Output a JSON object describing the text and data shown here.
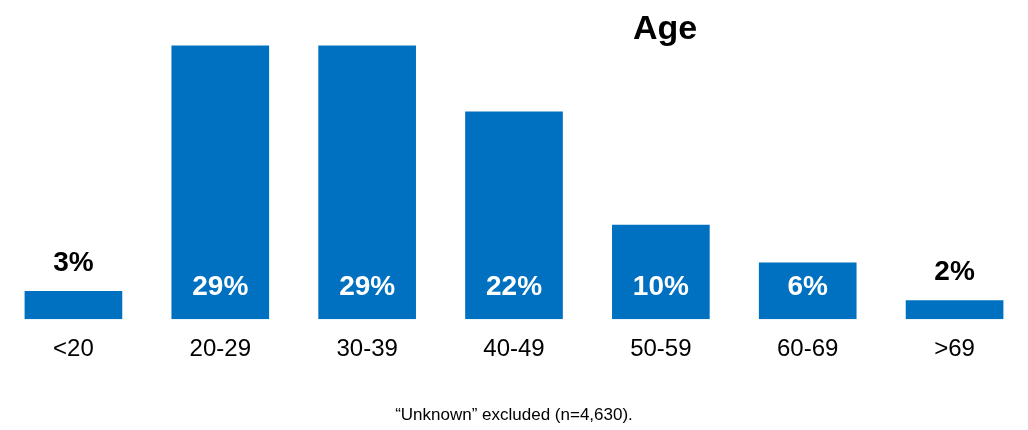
{
  "chart_data": {
    "type": "bar",
    "title": "Age",
    "categories": [
      "<20",
      "20-29",
      "30-39",
      "40-49",
      "50-59",
      "60-69",
      ">69"
    ],
    "values": [
      3,
      29,
      29,
      22,
      10,
      6,
      2
    ],
    "value_labels": [
      "3%",
      "29%",
      "29%",
      "22%",
      "10%",
      "6%",
      "2%"
    ],
    "color": "#0070c0",
    "annotations": [
      "“Unknown” excluded (n=4,630)."
    ],
    "grid": false,
    "legend": false
  }
}
